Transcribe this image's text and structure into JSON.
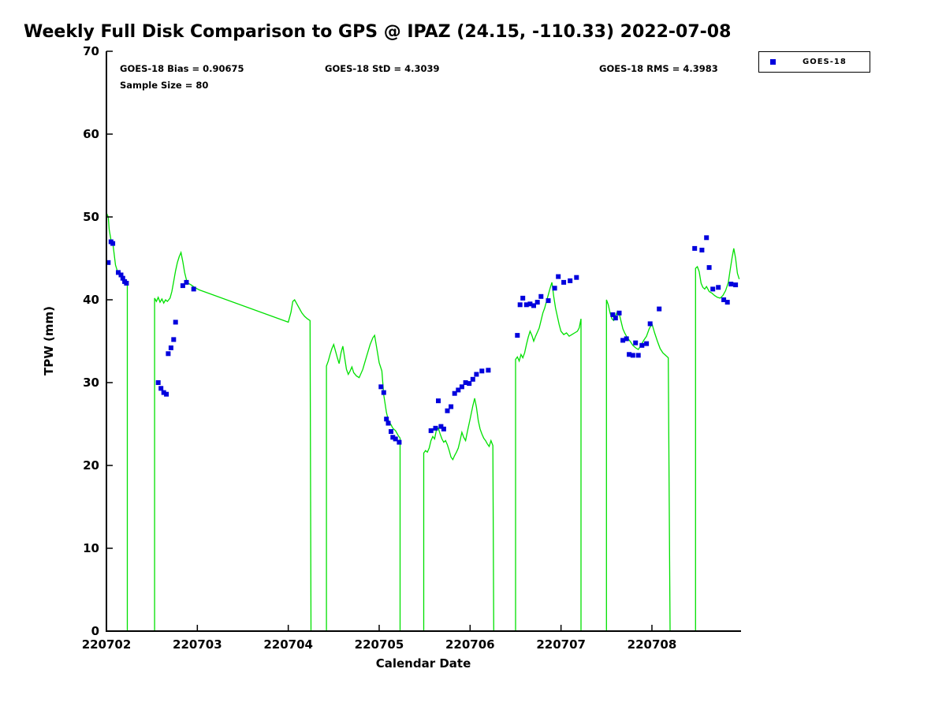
{
  "title": "Weekly Full Disk Comparison to GPS @ IPAZ (24.15, -110.33) 2022-07-08",
  "stats": {
    "bias": "GOES-18 Bias = 0.90675",
    "std": "GOES-18 StD = 4.3039",
    "rms": "GOES-18 RMS = 4.3983",
    "sample_size": "Sample Size = 80"
  },
  "legend": {
    "position": "top-right",
    "entries": [
      {
        "label": "GOES-18",
        "marker": "square",
        "color": "#0000dd"
      }
    ]
  },
  "colors": {
    "background": "#ffffff",
    "axis": "#000000",
    "gps_line": "#00e000",
    "goes18_marker": "#0000dd"
  },
  "chart_data": {
    "type": "line",
    "title": "Weekly Full Disk Comparison to GPS @ IPAZ (24.15, -110.33) 2022-07-08",
    "xlabel": "Calendar Date",
    "ylabel": "TPW (mm)",
    "xlim": [
      2,
      8.98
    ],
    "ylim": [
      0,
      70
    ],
    "grid": false,
    "x_ticks": [
      {
        "value": 2,
        "label": "220702"
      },
      {
        "value": 3,
        "label": "220703"
      },
      {
        "value": 4,
        "label": "220704"
      },
      {
        "value": 5,
        "label": "220705"
      },
      {
        "value": 6,
        "label": "220706"
      },
      {
        "value": 7,
        "label": "220707"
      },
      {
        "value": 8,
        "label": "220708"
      }
    ],
    "y_ticks": [
      {
        "value": 0,
        "label": "0"
      },
      {
        "value": 10,
        "label": "10"
      },
      {
        "value": 20,
        "label": "20"
      },
      {
        "value": 30,
        "label": "30"
      },
      {
        "value": 40,
        "label": "40"
      },
      {
        "value": 50,
        "label": "50"
      },
      {
        "value": 60,
        "label": "60"
      },
      {
        "value": 70,
        "label": "70"
      }
    ],
    "series": [
      {
        "name": "GPS",
        "type": "line",
        "color": "#00e000",
        "points": [
          [
            2.0,
            50.5
          ],
          [
            2.02,
            50.0
          ],
          [
            2.03,
            48.5
          ],
          [
            2.05,
            47.2
          ],
          [
            2.07,
            46.8
          ],
          [
            2.08,
            46.0
          ],
          [
            2.1,
            44.2
          ],
          [
            2.12,
            43.5
          ],
          [
            2.14,
            43.2
          ],
          [
            2.16,
            42.8
          ],
          [
            2.18,
            42.3
          ],
          [
            2.2,
            42.1
          ],
          [
            2.23,
            42.0
          ],
          [
            2.23,
            0
          ],
          [
            2.53,
            0
          ],
          [
            2.53,
            40.2
          ],
          [
            2.55,
            39.8
          ],
          [
            2.57,
            40.3
          ],
          [
            2.59,
            39.7
          ],
          [
            2.61,
            40.1
          ],
          [
            2.63,
            39.6
          ],
          [
            2.65,
            40.0
          ],
          [
            2.67,
            39.8
          ],
          [
            2.7,
            40.2
          ],
          [
            2.72,
            41.0
          ],
          [
            2.74,
            42.2
          ],
          [
            2.76,
            43.5
          ],
          [
            2.78,
            44.5
          ],
          [
            2.8,
            45.2
          ],
          [
            2.82,
            45.7
          ],
          [
            2.84,
            44.6
          ],
          [
            2.86,
            43.3
          ],
          [
            2.88,
            42.4
          ],
          [
            2.9,
            42.0
          ],
          [
            2.93,
            41.8
          ],
          [
            2.97,
            41.5
          ],
          [
            3.02,
            41.2
          ],
          [
            3.07,
            41.0
          ],
          [
            4.0,
            37.3
          ],
          [
            4.03,
            38.5
          ],
          [
            4.05,
            39.8
          ],
          [
            4.07,
            40.0
          ],
          [
            4.09,
            39.6
          ],
          [
            4.12,
            39.0
          ],
          [
            4.15,
            38.4
          ],
          [
            4.18,
            38.0
          ],
          [
            4.21,
            37.7
          ],
          [
            4.24,
            37.5
          ],
          [
            4.25,
            0
          ],
          [
            4.42,
            0
          ],
          [
            4.42,
            32.0
          ],
          [
            4.44,
            32.6
          ],
          [
            4.46,
            33.4
          ],
          [
            4.48,
            34.1
          ],
          [
            4.5,
            34.6
          ],
          [
            4.52,
            33.8
          ],
          [
            4.54,
            33.0
          ],
          [
            4.56,
            32.3
          ],
          [
            4.58,
            33.6
          ],
          [
            4.6,
            34.4
          ],
          [
            4.62,
            33.0
          ],
          [
            4.64,
            31.6
          ],
          [
            4.66,
            31.0
          ],
          [
            4.68,
            31.4
          ],
          [
            4.7,
            31.9
          ],
          [
            4.72,
            31.2
          ],
          [
            4.75,
            30.8
          ],
          [
            4.78,
            30.6
          ],
          [
            4.82,
            31.6
          ],
          [
            4.86,
            33.1
          ],
          [
            4.9,
            34.6
          ],
          [
            4.93,
            35.4
          ],
          [
            4.95,
            35.7
          ],
          [
            4.97,
            34.4
          ],
          [
            5.0,
            32.4
          ],
          [
            5.03,
            31.4
          ],
          [
            5.05,
            28.5
          ],
          [
            5.08,
            26.4
          ],
          [
            5.1,
            25.5
          ],
          [
            5.13,
            24.9
          ],
          [
            5.15,
            24.5
          ],
          [
            5.18,
            24.2
          ],
          [
            5.21,
            23.6
          ],
          [
            5.23,
            23.3
          ],
          [
            5.23,
            0
          ],
          [
            5.49,
            0
          ],
          [
            5.49,
            21.5
          ],
          [
            5.51,
            21.8
          ],
          [
            5.53,
            21.6
          ],
          [
            5.55,
            22.1
          ],
          [
            5.57,
            23.0
          ],
          [
            5.59,
            23.5
          ],
          [
            5.61,
            23.2
          ],
          [
            5.63,
            24.3
          ],
          [
            5.65,
            24.5
          ],
          [
            5.67,
            23.8
          ],
          [
            5.69,
            23.2
          ],
          [
            5.71,
            22.8
          ],
          [
            5.73,
            23.0
          ],
          [
            5.75,
            22.5
          ],
          [
            5.77,
            21.8
          ],
          [
            5.79,
            21.0
          ],
          [
            5.81,
            20.7
          ],
          [
            5.83,
            21.2
          ],
          [
            5.85,
            21.6
          ],
          [
            5.87,
            22.1
          ],
          [
            5.89,
            23.0
          ],
          [
            5.91,
            24.0
          ],
          [
            5.93,
            23.4
          ],
          [
            5.95,
            23.0
          ],
          [
            5.97,
            24.1
          ],
          [
            6.0,
            25.6
          ],
          [
            6.03,
            27.2
          ],
          [
            6.05,
            28.1
          ],
          [
            6.07,
            27.0
          ],
          [
            6.09,
            25.4
          ],
          [
            6.11,
            24.4
          ],
          [
            6.13,
            23.8
          ],
          [
            6.15,
            23.3
          ],
          [
            6.17,
            23.0
          ],
          [
            6.19,
            22.6
          ],
          [
            6.21,
            22.3
          ],
          [
            6.23,
            23.0
          ],
          [
            6.25,
            22.4
          ],
          [
            6.26,
            0
          ],
          [
            6.5,
            0
          ],
          [
            6.5,
            32.8
          ],
          [
            6.52,
            33.1
          ],
          [
            6.54,
            32.6
          ],
          [
            6.56,
            33.4
          ],
          [
            6.58,
            33.0
          ],
          [
            6.6,
            33.6
          ],
          [
            6.62,
            34.6
          ],
          [
            6.64,
            35.5
          ],
          [
            6.66,
            36.2
          ],
          [
            6.68,
            35.7
          ],
          [
            6.7,
            35.0
          ],
          [
            6.72,
            35.6
          ],
          [
            6.74,
            36.1
          ],
          [
            6.76,
            36.6
          ],
          [
            6.78,
            37.5
          ],
          [
            6.8,
            38.4
          ],
          [
            6.82,
            39.0
          ],
          [
            6.84,
            39.8
          ],
          [
            6.86,
            40.6
          ],
          [
            6.88,
            41.4
          ],
          [
            6.9,
            42.1
          ],
          [
            6.92,
            40.4
          ],
          [
            6.94,
            39.0
          ],
          [
            6.96,
            38.0
          ],
          [
            6.98,
            37.0
          ],
          [
            7.0,
            36.2
          ],
          [
            7.03,
            35.8
          ],
          [
            7.06,
            36.0
          ],
          [
            7.09,
            35.6
          ],
          [
            7.12,
            35.8
          ],
          [
            7.15,
            36.0
          ],
          [
            7.18,
            36.2
          ],
          [
            7.2,
            36.6
          ],
          [
            7.22,
            37.7
          ],
          [
            7.22,
            0
          ],
          [
            7.5,
            0
          ],
          [
            7.5,
            40.0
          ],
          [
            7.52,
            39.4
          ],
          [
            7.54,
            38.4
          ],
          [
            7.56,
            37.7
          ],
          [
            7.58,
            37.5
          ],
          [
            7.6,
            38.0
          ],
          [
            7.62,
            38.6
          ],
          [
            7.64,
            38.3
          ],
          [
            7.66,
            37.4
          ],
          [
            7.68,
            36.5
          ],
          [
            7.7,
            36.0
          ],
          [
            7.73,
            35.4
          ],
          [
            7.76,
            35.0
          ],
          [
            7.79,
            34.5
          ],
          [
            7.82,
            34.2
          ],
          [
            7.85,
            34.0
          ],
          [
            7.88,
            34.5
          ],
          [
            7.91,
            35.1
          ],
          [
            7.94,
            35.6
          ],
          [
            7.97,
            36.5
          ],
          [
            8.0,
            37.1
          ],
          [
            8.03,
            36.0
          ],
          [
            8.06,
            35.0
          ],
          [
            8.09,
            34.1
          ],
          [
            8.12,
            33.6
          ],
          [
            8.15,
            33.3
          ],
          [
            8.18,
            33.0
          ],
          [
            8.2,
            0
          ],
          [
            8.48,
            0
          ],
          [
            8.48,
            43.8
          ],
          [
            8.5,
            44.0
          ],
          [
            8.52,
            43.4
          ],
          [
            8.54,
            42.0
          ],
          [
            8.56,
            41.5
          ],
          [
            8.58,
            41.3
          ],
          [
            8.6,
            41.6
          ],
          [
            8.63,
            41.0
          ],
          [
            8.66,
            40.8
          ],
          [
            8.69,
            40.5
          ],
          [
            8.72,
            40.3
          ],
          [
            8.75,
            40.2
          ],
          [
            8.78,
            40.5
          ],
          [
            8.81,
            41.1
          ],
          [
            8.84,
            42.1
          ],
          [
            8.86,
            43.6
          ],
          [
            8.88,
            45.0
          ],
          [
            8.9,
            46.2
          ],
          [
            8.92,
            45.0
          ],
          [
            8.94,
            43.2
          ],
          [
            8.96,
            42.5
          ]
        ]
      },
      {
        "name": "GOES-18",
        "type": "scatter",
        "marker": "square",
        "color": "#0000dd",
        "points": [
          [
            2.02,
            44.5
          ],
          [
            2.05,
            47.0
          ],
          [
            2.07,
            46.8
          ],
          [
            2.13,
            43.3
          ],
          [
            2.16,
            43.0
          ],
          [
            2.18,
            42.6
          ],
          [
            2.2,
            42.2
          ],
          [
            2.22,
            42.0
          ],
          [
            2.57,
            30.0
          ],
          [
            2.6,
            29.3
          ],
          [
            2.63,
            28.8
          ],
          [
            2.66,
            28.6
          ],
          [
            2.68,
            33.5
          ],
          [
            2.71,
            34.2
          ],
          [
            2.74,
            35.2
          ],
          [
            2.76,
            37.3
          ],
          [
            2.84,
            41.7
          ],
          [
            2.88,
            42.1
          ],
          [
            2.96,
            41.3
          ],
          [
            5.02,
            29.5
          ],
          [
            5.05,
            28.8
          ],
          [
            5.08,
            25.6
          ],
          [
            5.1,
            25.1
          ],
          [
            5.13,
            24.1
          ],
          [
            5.15,
            23.4
          ],
          [
            5.18,
            23.2
          ],
          [
            5.22,
            22.8
          ],
          [
            5.57,
            24.2
          ],
          [
            5.62,
            24.5
          ],
          [
            5.65,
            27.8
          ],
          [
            5.68,
            24.7
          ],
          [
            5.71,
            24.4
          ],
          [
            5.75,
            26.6
          ],
          [
            5.79,
            27.1
          ],
          [
            5.83,
            28.7
          ],
          [
            5.87,
            29.1
          ],
          [
            5.91,
            29.5
          ],
          [
            5.95,
            30.0
          ],
          [
            5.99,
            29.9
          ],
          [
            6.03,
            30.4
          ],
          [
            6.07,
            31.0
          ],
          [
            6.13,
            31.4
          ],
          [
            6.2,
            31.5
          ],
          [
            6.52,
            35.7
          ],
          [
            6.55,
            39.4
          ],
          [
            6.58,
            40.2
          ],
          [
            6.62,
            39.4
          ],
          [
            6.66,
            39.5
          ],
          [
            6.7,
            39.3
          ],
          [
            6.74,
            39.7
          ],
          [
            6.78,
            40.4
          ],
          [
            6.86,
            39.9
          ],
          [
            6.93,
            41.4
          ],
          [
            6.97,
            42.8
          ],
          [
            7.03,
            42.1
          ],
          [
            7.1,
            42.3
          ],
          [
            7.17,
            42.7
          ],
          [
            7.57,
            38.2
          ],
          [
            7.6,
            37.8
          ],
          [
            7.64,
            38.4
          ],
          [
            7.68,
            35.1
          ],
          [
            7.72,
            35.3
          ],
          [
            7.75,
            33.4
          ],
          [
            7.79,
            33.3
          ],
          [
            7.82,
            34.8
          ],
          [
            7.85,
            33.3
          ],
          [
            7.89,
            34.5
          ],
          [
            7.94,
            34.7
          ],
          [
            7.98,
            37.1
          ],
          [
            8.08,
            38.9
          ],
          [
            8.47,
            46.2
          ],
          [
            8.55,
            46.0
          ],
          [
            8.6,
            47.5
          ],
          [
            8.63,
            43.9
          ],
          [
            8.67,
            41.3
          ],
          [
            8.73,
            41.5
          ],
          [
            8.79,
            40.0
          ],
          [
            8.83,
            39.7
          ],
          [
            8.87,
            41.9
          ],
          [
            8.92,
            41.8
          ]
        ]
      }
    ]
  }
}
